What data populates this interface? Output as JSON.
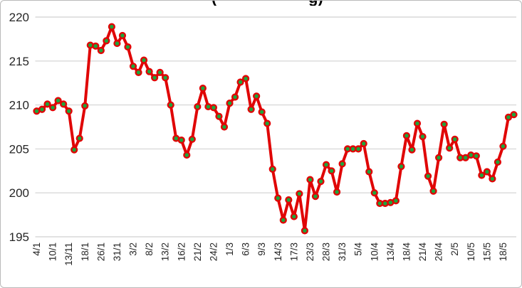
{
  "title_fragments": {
    "left": "(",
    "right": "g)"
  },
  "chart_data": {
    "type": "line",
    "title": "",
    "xlabel": "",
    "ylabel": "",
    "ylim": [
      195,
      220
    ],
    "yticks": [
      220,
      215,
      210,
      205,
      200,
      195
    ],
    "grid": true,
    "legend": false,
    "label_interval": 3,
    "x_labels": [
      "4/1",
      "10/1",
      "13/11",
      "18/1",
      "26/1",
      "31/1",
      "3/2",
      "8/2",
      "13/2",
      "16/2",
      "21/2",
      "24/2",
      "1/3",
      "6/3",
      "9/3",
      "14/3",
      "17/3",
      "23/3",
      "28/3",
      "31/3",
      "5/4",
      "10/4",
      "13/4",
      "18/4",
      "21/4",
      "26/4",
      "2/5",
      "10/5",
      "15/5",
      "18/5"
    ],
    "values": [
      209.3,
      209.5,
      210.1,
      209.7,
      210.5,
      210.1,
      209.3,
      204.9,
      206.2,
      209.9,
      216.8,
      216.7,
      216.2,
      217.3,
      218.9,
      217.0,
      217.9,
      216.6,
      214.4,
      213.7,
      215.1,
      213.8,
      213.1,
      213.7,
      213.1,
      210.0,
      206.2,
      206.0,
      204.3,
      206.1,
      209.8,
      211.9,
      209.8,
      209.7,
      208.7,
      207.5,
      210.2,
      210.9,
      212.6,
      213.0,
      209.5,
      211.0,
      209.2,
      207.9,
      202.7,
      199.4,
      196.9,
      199.2,
      197.3,
      199.9,
      195.7,
      201.5,
      199.6,
      201.3,
      203.2,
      202.5,
      200.1,
      203.3,
      205.0,
      205.0,
      205.0,
      205.6,
      202.4,
      200.0,
      198.8,
      198.8,
      198.9,
      199.1,
      203.0,
      206.5,
      204.9,
      207.9,
      206.4,
      201.9,
      200.2,
      204.0,
      207.8,
      205.1,
      206.1,
      204.0,
      204.0,
      204.3,
      204.2,
      202.0,
      202.4,
      201.6,
      203.5,
      205.3,
      208.6,
      208.9
    ],
    "line_color": "#e00505",
    "marker_color": "#1da53c",
    "grid_color": "#d9d9d9",
    "text_color": "#262626"
  }
}
